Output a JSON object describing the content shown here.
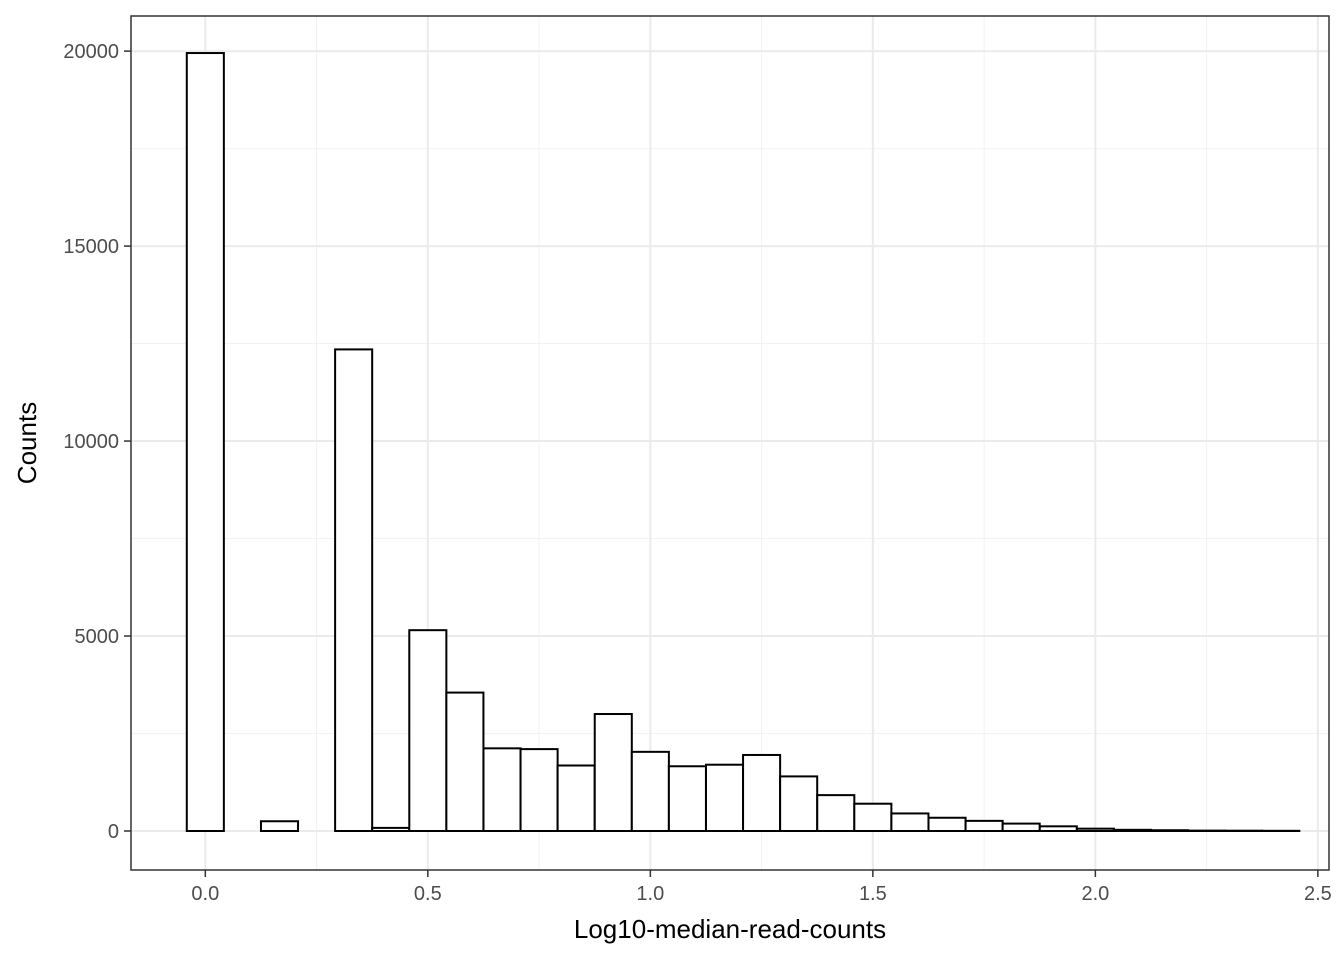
{
  "chart_data": {
    "type": "bar",
    "xlabel": "Log10-median-read-counts",
    "ylabel": "Counts",
    "xlim": [
      -0.167,
      2.525
    ],
    "ylim": [
      -1000,
      20900
    ],
    "x_ticks": [
      0.0,
      0.5,
      1.0,
      1.5,
      2.0,
      2.5
    ],
    "x_tick_labels": [
      "0.0",
      "0.5",
      "1.0",
      "1.5",
      "2.0",
      "2.5"
    ],
    "y_ticks": [
      0,
      5000,
      10000,
      15000,
      20000
    ],
    "y_tick_labels": [
      "0",
      "5000",
      "10000",
      "15000",
      "20000"
    ],
    "bin_width": 0.0833,
    "bin_centers": [
      0.0,
      0.0833,
      0.1667,
      0.25,
      0.3333,
      0.4167,
      0.5,
      0.5833,
      0.6667,
      0.75,
      0.8333,
      0.9167,
      1.0,
      1.0833,
      1.1667,
      1.25,
      1.3333,
      1.4167,
      1.5,
      1.5833,
      1.6667,
      1.75,
      1.8333,
      1.9167,
      2.0,
      2.0833,
      2.1667,
      2.25,
      2.3333,
      2.4167
    ],
    "values": [
      19950,
      0,
      250,
      0,
      12350,
      80,
      5150,
      3550,
      2120,
      2100,
      1680,
      3000,
      2030,
      1660,
      1700,
      1950,
      1400,
      920,
      700,
      450,
      340,
      260,
      190,
      120,
      60,
      30,
      20,
      10,
      8,
      5
    ],
    "grid": true,
    "legend": "none"
  }
}
